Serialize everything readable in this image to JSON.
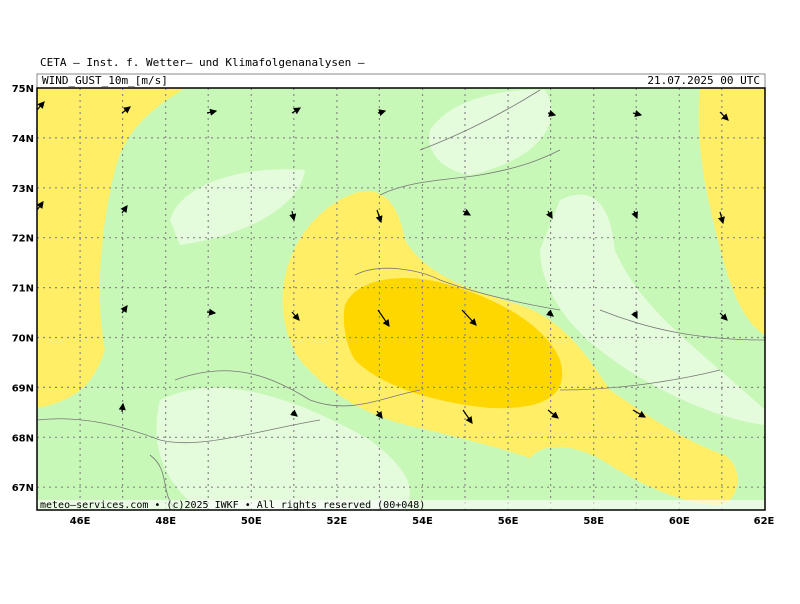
{
  "header": {
    "title": "CETA — Inst. f. Wetter— und Klimafolgenanalysen —",
    "variable": "WIND_GUST_10m_[m/s]",
    "date": "21.07.2025 00 UTC"
  },
  "axes": {
    "lat_labels": [
      "75N",
      "74N",
      "73N",
      "72N",
      "71N",
      "70N",
      "69N",
      "68N",
      "67N"
    ],
    "lon_labels": [
      "46E",
      "48E",
      "50E",
      "52E",
      "54E",
      "56E",
      "58E",
      "60E",
      "62E"
    ]
  },
  "footer": "meteo—services.com • (c)2025 IWKF • All rights reserved (00+048)"
}
